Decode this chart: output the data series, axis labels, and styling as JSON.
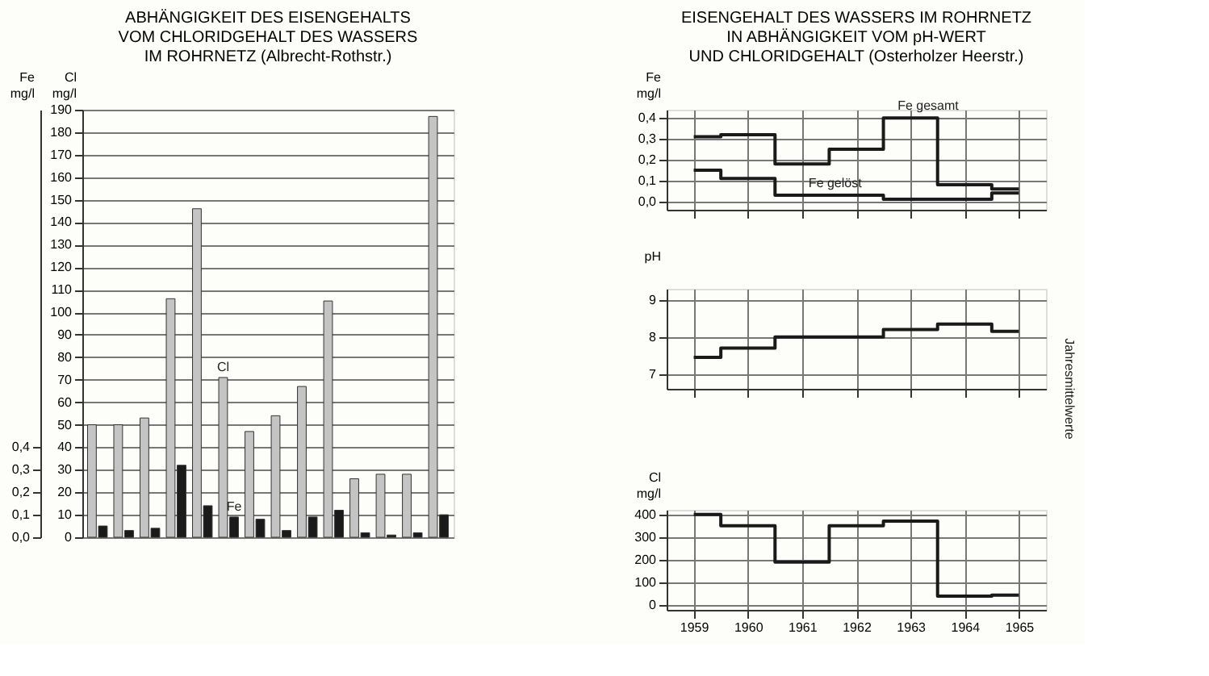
{
  "chart_data": [
    {
      "type": "bar",
      "title": "ABHÄNGIGKEIT DES EISENGEHALTS\nVOM CHLORIDGEHALT DES WASSERS\nIM ROHRNETZ (Albrecht-Rothstr.)",
      "ylabel": "Cl\nmg/l",
      "y2label": "Fe\nmg/l",
      "categories": [
        null,
        null,
        null,
        null,
        null,
        null,
        null,
        null,
        null,
        null,
        null,
        null,
        null,
        null
      ],
      "series": [
        {
          "name": "Cl",
          "color": "#c4c4c4",
          "values": [
            50,
            50,
            53,
            106,
            146,
            71,
            47,
            54,
            67,
            105,
            26,
            28,
            28,
            187
          ]
        },
        {
          "name": "Fe",
          "color": "#1a1a1a",
          "axis": "y2",
          "values": [
            0.05,
            0.03,
            0.04,
            0.32,
            0.14,
            0.09,
            0.08,
            0.03,
            0.09,
            0.12,
            0.02,
            0.01,
            0.02,
            0.1
          ]
        }
      ],
      "ylim": [
        0,
        190
      ],
      "yticks": [
        0,
        10,
        20,
        30,
        40,
        50,
        60,
        70,
        80,
        90,
        100,
        110,
        120,
        130,
        140,
        150,
        160,
        170,
        180,
        190
      ],
      "y2lim": [
        0,
        1.9
      ],
      "y2ticks": [
        {
          "value": 0,
          "label": "0,0"
        },
        {
          "value": 0.1,
          "label": "0,1"
        },
        {
          "value": 0.2,
          "label": "0,2"
        },
        {
          "value": 0.3,
          "label": "0,3"
        },
        {
          "value": 0.4,
          "label": "0,4"
        }
      ],
      "grid": "y",
      "legend": false
    },
    {
      "type": "step",
      "title": "EISENGEHALT DES WASSERS IM ROHRNETZ\nIN ABHÄNGIGKEIT VOM pH-WERT\nUND CHLORIDGEHALT (Osterholzer Heerstr.)",
      "ylabel": "Fe\nmg/l",
      "categories": [
        "1959",
        "1960",
        "1961",
        "1962",
        "1963",
        "1964",
        "1965"
      ],
      "series": [
        {
          "name": "Fe gesamt",
          "color": "#1a1a1a",
          "values": [
            0.31,
            0.32,
            0.18,
            0.25,
            0.4,
            0.08,
            0.06
          ]
        },
        {
          "name": "Fe gelöst",
          "color": "#1a1a1a",
          "values": [
            0.15,
            0.11,
            0.03,
            0.03,
            0.01,
            0.01,
            0.04
          ]
        }
      ],
      "ylim": [
        -0.04,
        0.44
      ],
      "yticks": [
        {
          "value": 0,
          "label": "0,0"
        },
        {
          "value": 0.1,
          "label": "0,1"
        },
        {
          "value": 0.2,
          "label": "0,2"
        },
        {
          "value": 0.3,
          "label": "0,3"
        },
        {
          "value": 0.4,
          "label": "0,4"
        }
      ],
      "grid": true,
      "tick_labels": "y"
    },
    {
      "type": "step",
      "ylabel": "pH",
      "categories": [
        "1959",
        "1960",
        "1961",
        "1962",
        "1963",
        "1964",
        "1965"
      ],
      "series": [
        {
          "color": "#1a1a1a",
          "values": [
            7.45,
            7.7,
            8.0,
            8.0,
            8.2,
            8.35,
            8.15
          ]
        }
      ],
      "ylim": [
        6.6,
        9.3
      ],
      "yticks": [
        7,
        8,
        9
      ],
      "grid": true,
      "tick_labels": "y",
      "annotations": [
        "Jahresmittelwerte"
      ]
    },
    {
      "type": "step",
      "ylabel": "Cl\nmg/l",
      "categories": [
        "1959",
        "1960",
        "1961",
        "1962",
        "1963",
        "1964",
        "1965"
      ],
      "series": [
        {
          "color": "#1a1a1a",
          "values": [
            400,
            350,
            190,
            350,
            370,
            40,
            45
          ]
        }
      ],
      "ylim": [
        -20,
        420
      ],
      "yticks": [
        0,
        100,
        200,
        300,
        400
      ],
      "grid": true
    }
  ]
}
